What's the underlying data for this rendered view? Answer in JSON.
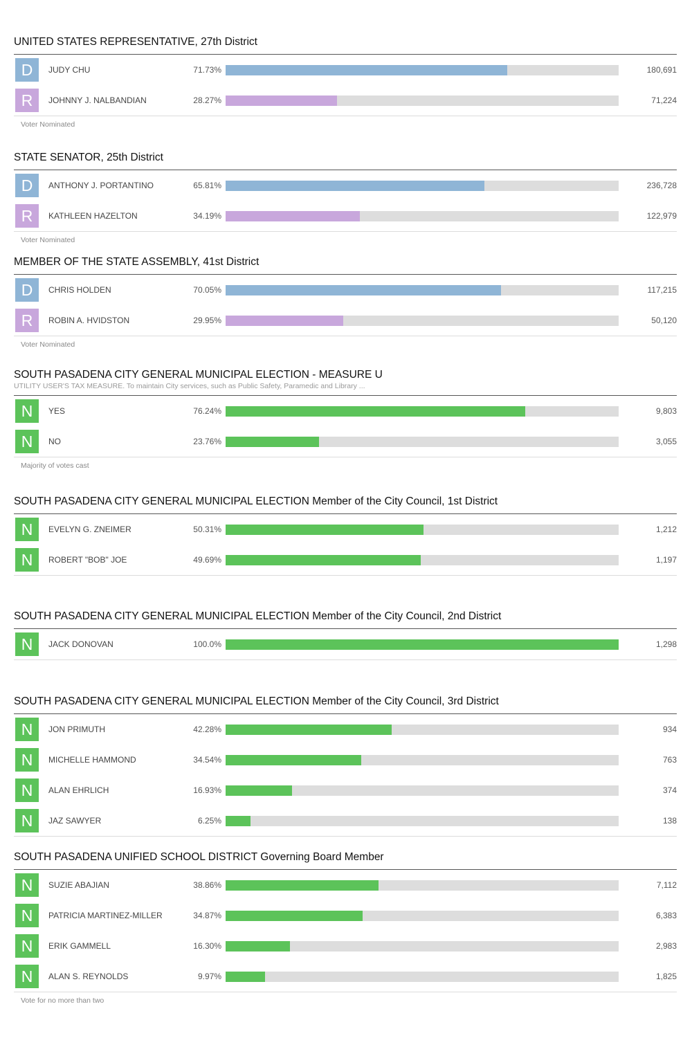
{
  "races": [
    {
      "title": "UNITED STATES REPRESENTATIVE, 27th District",
      "subtitle": "",
      "note": "Voter Nominated",
      "candidates": [
        {
          "party": "D",
          "name": "JUDY CHU",
          "pct_label": "71.73%",
          "pct": 71.73,
          "votes": "180,691"
        },
        {
          "party": "R",
          "name": "JOHNNY J. NALBANDIAN",
          "pct_label": "28.27%",
          "pct": 28.27,
          "votes": "71,224"
        }
      ]
    },
    {
      "title": "STATE SENATOR, 25th District",
      "subtitle": "",
      "note": "Voter Nominated",
      "candidates": [
        {
          "party": "D",
          "name": "ANTHONY J. PORTANTINO",
          "pct_label": "65.81%",
          "pct": 65.81,
          "votes": "236,728"
        },
        {
          "party": "R",
          "name": "KATHLEEN HAZELTON",
          "pct_label": "34.19%",
          "pct": 34.19,
          "votes": "122,979"
        }
      ]
    },
    {
      "title": "MEMBER OF THE STATE ASSEMBLY, 41st District",
      "subtitle": "",
      "note": "Voter Nominated",
      "candidates": [
        {
          "party": "D",
          "name": "CHRIS HOLDEN",
          "pct_label": "70.05%",
          "pct": 70.05,
          "votes": "117,215"
        },
        {
          "party": "R",
          "name": "ROBIN A. HVIDSTON",
          "pct_label": "29.95%",
          "pct": 29.95,
          "votes": "50,120"
        }
      ]
    },
    {
      "title": "SOUTH PASADENA CITY GENERAL MUNICIPAL ELECTION - MEASURE U",
      "subtitle": "UTILITY USER'S TAX MEASURE. To maintain City services, such as Public Safety, Paramedic and Library ...",
      "note": "Majority of votes cast",
      "candidates": [
        {
          "party": "N",
          "name": "YES",
          "pct_label": "76.24%",
          "pct": 76.24,
          "votes": "9,803"
        },
        {
          "party": "N",
          "name": "NO",
          "pct_label": "23.76%",
          "pct": 23.76,
          "votes": "3,055"
        }
      ]
    },
    {
      "title": "SOUTH PASADENA CITY GENERAL MUNICIPAL ELECTION Member of the City Council, 1st District",
      "subtitle": "",
      "note": "",
      "candidates": [
        {
          "party": "N",
          "name": "EVELYN G. ZNEIMER",
          "pct_label": "50.31%",
          "pct": 50.31,
          "votes": "1,212"
        },
        {
          "party": "N",
          "name": "ROBERT \"BOB\" JOE",
          "pct_label": "49.69%",
          "pct": 49.69,
          "votes": "1,197"
        }
      ]
    },
    {
      "title": "SOUTH PASADENA CITY GENERAL MUNICIPAL ELECTION Member of the City Council, 2nd District",
      "subtitle": "",
      "note": "",
      "candidates": [
        {
          "party": "N",
          "name": "JACK DONOVAN",
          "pct_label": "100.0%",
          "pct": 100.0,
          "votes": "1,298"
        }
      ]
    },
    {
      "title": "SOUTH PASADENA CITY GENERAL MUNICIPAL ELECTION Member of the City Council, 3rd District",
      "subtitle": "",
      "note": "",
      "candidates": [
        {
          "party": "N",
          "name": "JON PRIMUTH",
          "pct_label": "42.28%",
          "pct": 42.28,
          "votes": "934"
        },
        {
          "party": "N",
          "name": "MICHELLE HAMMOND",
          "pct_label": "34.54%",
          "pct": 34.54,
          "votes": "763"
        },
        {
          "party": "N",
          "name": "ALAN EHRLICH",
          "pct_label": "16.93%",
          "pct": 16.93,
          "votes": "374"
        },
        {
          "party": "N",
          "name": "JAZ SAWYER",
          "pct_label": "6.25%",
          "pct": 6.25,
          "votes": "138"
        }
      ]
    },
    {
      "title": "SOUTH PASADENA UNIFIED SCHOOL DISTRICT Governing Board Member",
      "subtitle": "",
      "note": "Vote for no more than two",
      "candidates": [
        {
          "party": "N",
          "name": "SUZIE ABAJIAN",
          "pct_label": "38.86%",
          "pct": 38.86,
          "votes": "7,112"
        },
        {
          "party": "N",
          "name": "PATRICIA MARTINEZ-MILLER",
          "pct_label": "34.87%",
          "pct": 34.87,
          "votes": "6,383"
        },
        {
          "party": "N",
          "name": "ERIK GAMMELL",
          "pct_label": "16.30%",
          "pct": 16.3,
          "votes": "2,983"
        },
        {
          "party": "N",
          "name": "ALAN S. REYNOLDS",
          "pct_label": "9.97%",
          "pct": 9.97,
          "votes": "1,825"
        }
      ]
    }
  ],
  "colors": {
    "democrat": "#8fb5d6",
    "republican": "#c8a7dc",
    "nonpartisan": "#5cc35a",
    "track": "#dddddd"
  }
}
